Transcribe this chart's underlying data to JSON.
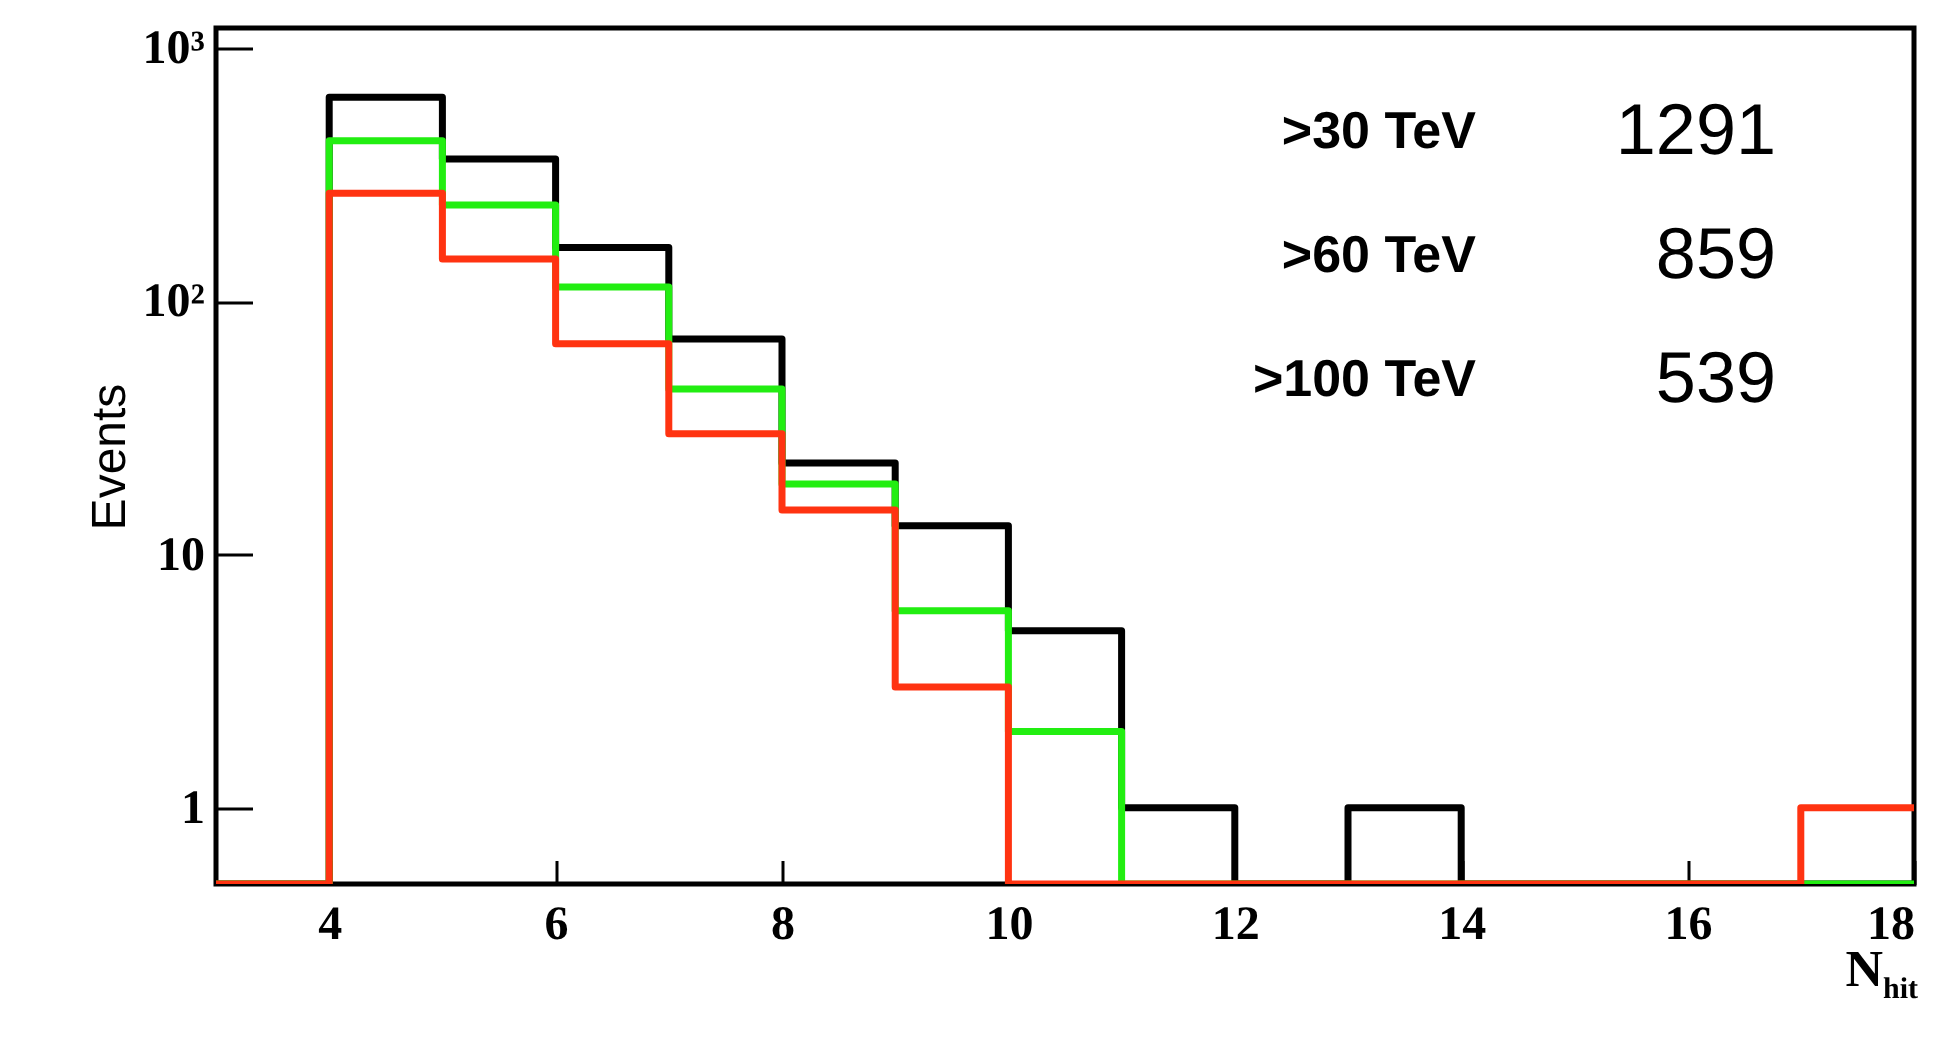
{
  "chart_data": {
    "type": "histogram",
    "xlabel": "N$_{hit}$",
    "ylabel": "Events",
    "bins": [
      3,
      4,
      5,
      6,
      7,
      8,
      9,
      10,
      11,
      12,
      13,
      14,
      15,
      16,
      17,
      18
    ],
    "series": [
      {
        "color": "#000000",
        "values": [
          null,
          640,
          365,
          163,
          71,
          23,
          13,
          5,
          1,
          null,
          1,
          null,
          null,
          null,
          null
        ]
      },
      {
        "color": "#22ee11",
        "values": [
          null,
          430,
          240,
          114,
          45,
          19,
          6,
          2,
          null,
          null,
          null,
          null,
          null,
          null,
          null
        ]
      },
      {
        "color": "#ff3311",
        "values": [
          null,
          267,
          147,
          68,
          30,
          15,
          3,
          null,
          null,
          null,
          null,
          null,
          null,
          null,
          1
        ]
      }
    ],
    "log": "y",
    "xlim": [
      3,
      18
    ],
    "xticks": [
      4,
      6,
      8,
      10,
      12,
      14,
      16,
      18
    ],
    "ylim": [
      0.5,
      1200
    ],
    "yticks": [
      1,
      10,
      {
        "value": 100,
        "label": "10²"
      },
      {
        "value": 1000,
        "label": "10³"
      }
    ],
    "annotations": [
      ">30 TeV",
      "1291",
      ">60 TeV",
      "859",
      ">100 TeV",
      "539"
    ]
  }
}
